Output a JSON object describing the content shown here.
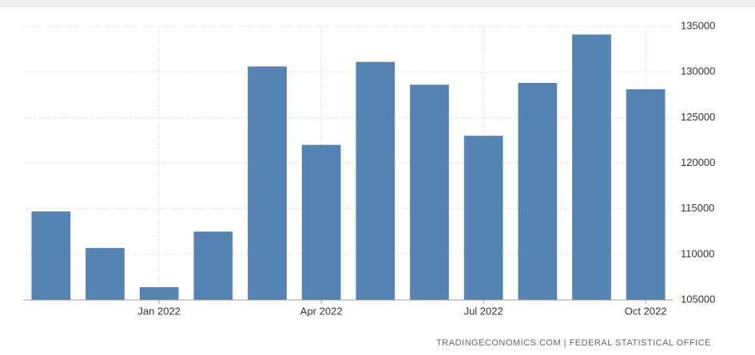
{
  "chart_data": {
    "type": "bar",
    "categories": [
      null,
      null,
      "Jan 2022",
      null,
      null,
      "Apr 2022",
      null,
      null,
      "Jul 2022",
      null,
      null,
      "Oct 2022"
    ],
    "values": [
      114700,
      110700,
      106400,
      112500,
      130600,
      122000,
      131100,
      128600,
      123000,
      128800,
      134100,
      128100
    ],
    "color": "#5583b3",
    "ylim": [
      105000,
      135000
    ],
    "yticks": [
      105000,
      110000,
      115000,
      120000,
      125000,
      130000,
      135000
    ],
    "grid": true
  },
  "source": "TRADINGECONOMICS.COM | FEDERAL STATISTICAL OFFICE"
}
